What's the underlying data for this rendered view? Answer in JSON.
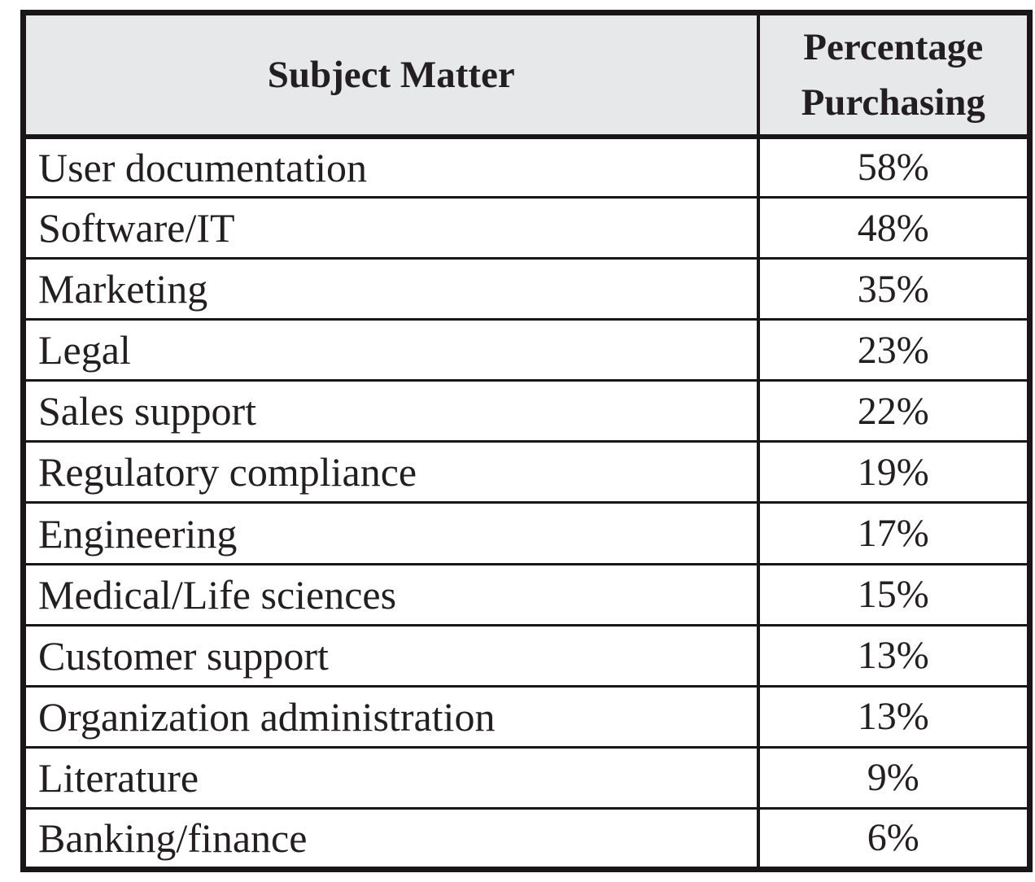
{
  "chart_data": {
    "type": "table",
    "columns": [
      "Subject Matter",
      "Percentage Purchasing"
    ],
    "rows": [
      [
        "User documentation",
        "58%"
      ],
      [
        "Software/IT",
        "48%"
      ],
      [
        "Marketing",
        "35%"
      ],
      [
        "Legal",
        "23%"
      ],
      [
        "Sales support",
        "22%"
      ],
      [
        "Regulatory compliance",
        "19%"
      ],
      [
        "Engineering",
        "17%"
      ],
      [
        "Medical/Life sciences",
        "15%"
      ],
      [
        "Customer support",
        "13%"
      ],
      [
        "Organization administration",
        "13%"
      ],
      [
        "Literature",
        "9%"
      ],
      [
        "Banking/finance",
        "6%"
      ]
    ],
    "values_numeric": [
      58,
      48,
      35,
      23,
      22,
      19,
      17,
      15,
      13,
      13,
      9,
      6
    ],
    "title": "",
    "legend": "none",
    "grid": "full table borders"
  },
  "table": {
    "header": {
      "subject": "Subject Matter",
      "percentage_line1": "Percentage",
      "percentage_line2": "Purchasing"
    },
    "rows": [
      {
        "label": "User documentation",
        "value": "58%"
      },
      {
        "label": "Software/IT",
        "value": "48%"
      },
      {
        "label": "Marketing",
        "value": "35%"
      },
      {
        "label": "Legal",
        "value": "23%"
      },
      {
        "label": "Sales support",
        "value": "22%"
      },
      {
        "label": "Regulatory compliance",
        "value": "19%"
      },
      {
        "label": "Engineering",
        "value": "17%"
      },
      {
        "label": "Medical/Life sciences",
        "value": "15%"
      },
      {
        "label": "Customer support",
        "value": "13%"
      },
      {
        "label": "Organization administration",
        "value": "13%"
      },
      {
        "label": "Literature",
        "value": "9%"
      },
      {
        "label": "Banking/finance",
        "value": "6%"
      }
    ],
    "colors": {
      "header_bg": "#e7e8e9",
      "border": "#1a1617",
      "text": "#231f20",
      "page_bg": "#ffffff"
    }
  }
}
